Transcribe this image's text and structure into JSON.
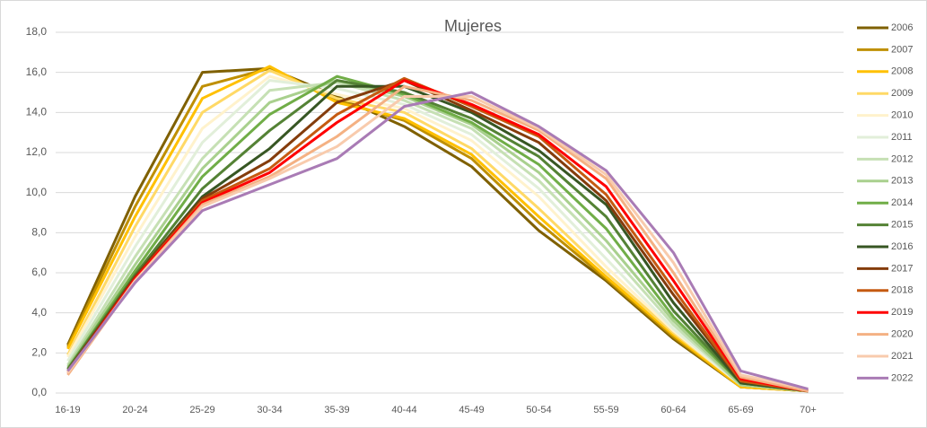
{
  "chart_data": {
    "type": "line",
    "title": "Mujeres",
    "categories": [
      "16-19",
      "20-24",
      "25-29",
      "30-34",
      "35-39",
      "40-44",
      "45-49",
      "50-54",
      "55-59",
      "60-64",
      "65-69",
      "70+"
    ],
    "ylim": [
      0,
      18
    ],
    "yticks": [
      {
        "value": 0,
        "label": "0,0"
      },
      {
        "value": 2,
        "label": "2,0"
      },
      {
        "value": 4,
        "label": "4,0"
      },
      {
        "value": 6,
        "label": "6,0"
      },
      {
        "value": 8,
        "label": "8,0"
      },
      {
        "value": 10,
        "label": "10,0"
      },
      {
        "value": 12,
        "label": "12,0"
      },
      {
        "value": 14,
        "label": "14,0"
      },
      {
        "value": 16,
        "label": "16,0"
      },
      {
        "value": 18,
        "label": "18,0"
      }
    ],
    "grid": true,
    "legend": "right",
    "series": [
      {
        "name": "2006",
        "color": "#7f6000",
        "values": [
          2.4,
          9.8,
          16.0,
          16.2,
          14.8,
          13.3,
          11.3,
          8.1,
          5.6,
          2.7,
          0.3,
          0.1
        ]
      },
      {
        "name": "2007",
        "color": "#bf8f00",
        "values": [
          2.3,
          9.3,
          15.3,
          16.2,
          14.6,
          13.6,
          11.7,
          8.5,
          5.7,
          2.8,
          0.3,
          0.1
        ]
      },
      {
        "name": "2008",
        "color": "#ffc000",
        "values": [
          2.2,
          8.8,
          14.7,
          16.3,
          14.5,
          13.7,
          11.9,
          8.8,
          5.8,
          2.9,
          0.3,
          0.1
        ]
      },
      {
        "name": "2009",
        "color": "#ffd966",
        "values": [
          1.9,
          8.3,
          14.0,
          16.1,
          14.7,
          14.0,
          12.2,
          9.2,
          6.0,
          3.0,
          0.4,
          0.1
        ]
      },
      {
        "name": "2010",
        "color": "#fff2cc",
        "values": [
          1.8,
          7.8,
          13.2,
          15.8,
          14.9,
          14.2,
          12.6,
          9.8,
          6.3,
          3.1,
          0.4,
          0.1
        ]
      },
      {
        "name": "2011",
        "color": "#e2efda",
        "values": [
          1.6,
          7.3,
          12.5,
          15.6,
          15.2,
          14.4,
          12.9,
          10.2,
          6.7,
          3.2,
          0.4,
          0.1
        ]
      },
      {
        "name": "2012",
        "color": "#c6e0b4",
        "values": [
          1.4,
          6.8,
          11.7,
          15.1,
          15.5,
          14.6,
          13.2,
          10.6,
          7.2,
          3.4,
          0.4,
          0.1
        ]
      },
      {
        "name": "2013",
        "color": "#a9d08e",
        "values": [
          1.3,
          6.4,
          11.2,
          14.5,
          15.6,
          14.8,
          13.4,
          11.0,
          7.6,
          3.6,
          0.4,
          0.1
        ]
      },
      {
        "name": "2014",
        "color": "#70ad47",
        "values": [
          1.2,
          6.1,
          10.8,
          13.9,
          15.8,
          14.9,
          13.5,
          11.4,
          8.2,
          3.8,
          0.5,
          0.1
        ]
      },
      {
        "name": "2015",
        "color": "#548235",
        "values": [
          1.2,
          5.9,
          10.2,
          13.1,
          15.6,
          15.0,
          13.7,
          11.8,
          8.8,
          4.1,
          0.5,
          0.1
        ]
      },
      {
        "name": "2016",
        "color": "#375623",
        "values": [
          1.1,
          5.8,
          9.8,
          12.2,
          15.3,
          15.3,
          14.0,
          12.1,
          9.4,
          4.5,
          0.5,
          0.1
        ]
      },
      {
        "name": "2017",
        "color": "#843c0c",
        "values": [
          1.1,
          5.8,
          9.7,
          11.6,
          14.5,
          15.6,
          14.1,
          12.5,
          9.6,
          4.9,
          0.6,
          0.1
        ]
      },
      {
        "name": "2018",
        "color": "#c55a11",
        "values": [
          1.0,
          5.7,
          9.6,
          11.2,
          13.9,
          15.7,
          14.3,
          12.8,
          9.9,
          5.2,
          0.6,
          0.1
        ]
      },
      {
        "name": "2019",
        "color": "#ff0000",
        "values": [
          1.0,
          5.7,
          9.5,
          11.0,
          13.5,
          15.6,
          14.4,
          12.9,
          10.3,
          5.6,
          0.7,
          0.1
        ]
      },
      {
        "name": "2020",
        "color": "#f4b183",
        "values": [
          0.9,
          5.6,
          9.4,
          10.8,
          12.8,
          15.3,
          14.6,
          13.1,
          10.7,
          6.0,
          0.8,
          0.1
        ]
      },
      {
        "name": "2021",
        "color": "#f8cbad",
        "values": [
          1.0,
          5.6,
          9.3,
          10.7,
          12.3,
          14.8,
          14.8,
          13.2,
          10.9,
          6.5,
          0.9,
          0.2
        ]
      },
      {
        "name": "2022",
        "color": "#a97bb5",
        "values": [
          1.1,
          5.5,
          9.1,
          10.4,
          11.7,
          14.3,
          15.0,
          13.3,
          11.1,
          7.0,
          1.1,
          0.2
        ]
      }
    ]
  }
}
